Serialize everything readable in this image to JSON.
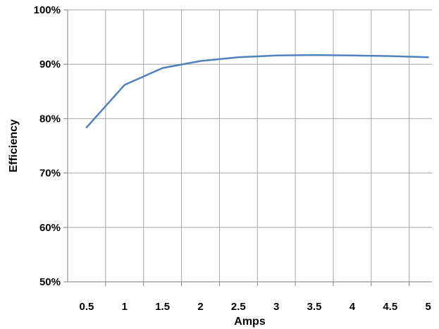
{
  "chart_data": {
    "type": "line",
    "xlabel": "Amps",
    "ylabel": "Efficiency",
    "x_ticks": [
      "0.5",
      "1",
      "1.5",
      "2",
      "2.5",
      "3",
      "3.5",
      "4",
      "4.5",
      "5"
    ],
    "y_ticks": [
      "50%",
      "60%",
      "70%",
      "80%",
      "90%",
      "100%"
    ],
    "xlim": [
      0.25,
      5.05
    ],
    "ylim": [
      50,
      100
    ],
    "grid": true,
    "series": [
      {
        "x": [
          0.5,
          1,
          1.5,
          2,
          2.5,
          3,
          3.5,
          4,
          4.5,
          5
        ],
        "y": [
          78.4,
          86.2,
          89.3,
          90.6,
          91.3,
          91.6,
          91.7,
          91.6,
          91.5,
          91.3
        ]
      }
    ]
  },
  "colors": {
    "line": "#4f81bd",
    "grid": "#a6a6a6",
    "axis": "#7f7f7f",
    "text": "#000000"
  }
}
